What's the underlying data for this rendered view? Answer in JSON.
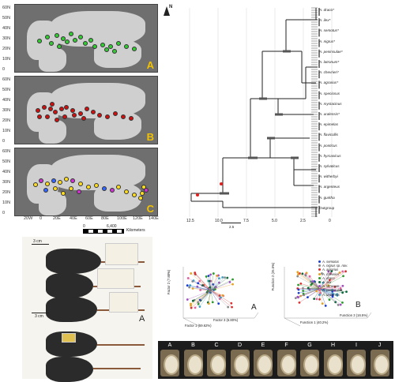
{
  "maps": {
    "y_ticks": [
      "60N",
      "50N",
      "40N",
      "30N",
      "20N",
      "10N",
      "0"
    ],
    "panels": [
      {
        "letter": "A",
        "dot_color": "#33cc33"
      },
      {
        "letter": "B",
        "dot_color": "#cc1111"
      },
      {
        "letter": "C",
        "dot_color": "#ffdd22"
      }
    ],
    "x_ticks": [
      "20W",
      "0",
      "20E",
      "40E",
      "60E",
      "80E",
      "100E",
      "120E",
      "140E"
    ],
    "scale_values": [
      "0",
      "6,400"
    ],
    "scale_unit": "Kilometers",
    "north": "N"
  },
  "tree": {
    "taxa": [
      "A. draco*",
      "A. ilex*",
      "A. semotus*",
      "A. nigrus*",
      "A. peninsulae*",
      "A. latronum*",
      "A. chevrieri*",
      "A. agrarius*",
      "A. speciosus",
      "A. mystacinus",
      "A. uralensis*",
      "A. epimelas",
      "A. flavicollis",
      "A. ponticus",
      "A. hyrcanicus",
      "A. sylvaticus",
      "A. witherbyi",
      "A. argenteus",
      "A. gurkha",
      "Outgroup"
    ],
    "axis": [
      "12.5",
      "10.0",
      "7.5",
      "5.0",
      "2.5",
      "0"
    ],
    "scale": "2.5"
  },
  "photos": {
    "letter": "A",
    "scale_top": "3 cm",
    "scale_mid": "3 cm"
  },
  "scatterA": {
    "letter": "A",
    "xlabel": "Factor 1 (59.62%)",
    "ylabel": "Factor 2 (7.88%)",
    "zlabel": "Factor 3 (6.80%)"
  },
  "scatterB": {
    "letter": "B",
    "xlabel": "Function 1 (40.2%)",
    "ylabel": "Function 2 (26.5%)",
    "zlabel": "Function 3 (16.5%)"
  },
  "legend": [
    {
      "name": "A. semotus",
      "color": "#1a3fd0"
    },
    {
      "name": "A. nigrus sp. nov.",
      "color": "#8a8a8a"
    },
    {
      "name": "A. agrarius",
      "color": "#d93030"
    },
    {
      "name": "A. chevrieri",
      "color": "#e8a020"
    },
    {
      "name": "A. draco",
      "color": "#2c9a2c"
    },
    {
      "name": "A. ilex",
      "color": "#0a6a3a"
    },
    {
      "name": "A. latronum",
      "color": "#a050c0"
    },
    {
      "name": "A. peninsulae",
      "color": "#e060a0"
    },
    {
      "name": "A. uralensis",
      "color": "#40a0c0"
    }
  ],
  "teeth": {
    "letters": [
      "A",
      "B",
      "C",
      "D",
      "E",
      "F",
      "G",
      "H",
      "I",
      "J"
    ]
  }
}
